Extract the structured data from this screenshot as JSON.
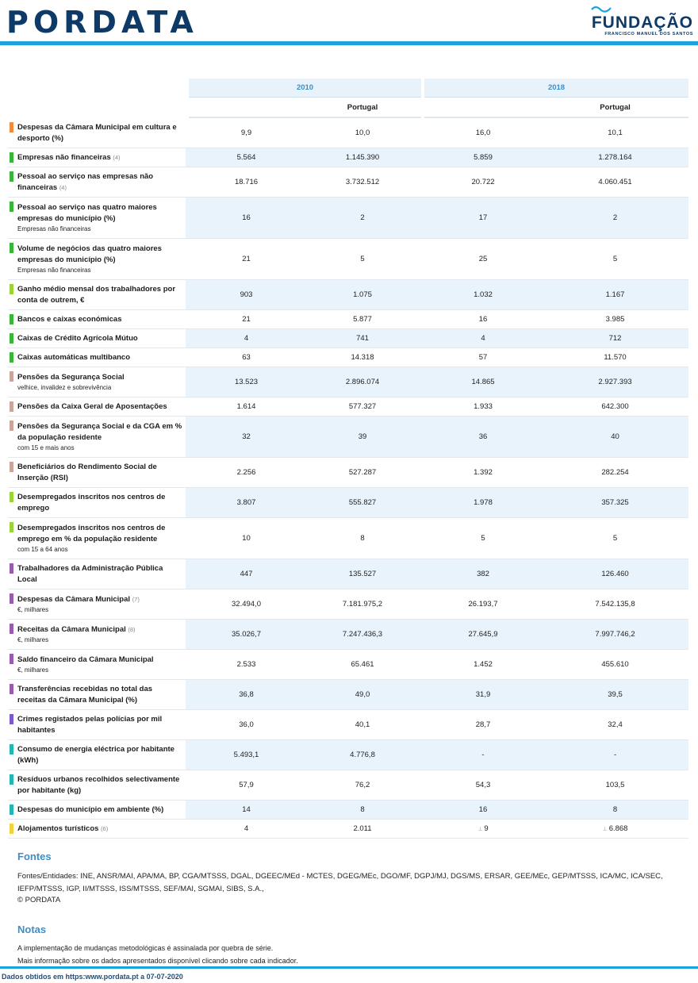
{
  "header": {
    "logo": "PORDATA",
    "foundation_name": "FUNDAÇÃO",
    "foundation_sub": "FRANCISCO MANUEL DOS SANTOS",
    "accent_color": "#1aa3dd"
  },
  "table": {
    "years": [
      "2010",
      "2018"
    ],
    "region": "Portugal",
    "rows": [
      {
        "label": "Despesas da Câmara Municipal em cultura e desporto (%)",
        "note": "",
        "sub": "",
        "color": "#f28c3c",
        "values": [
          "9,9",
          "10,0",
          "16,0",
          "10,1"
        ]
      },
      {
        "label": "Empresas não financeiras",
        "note": "(4)",
        "sub": "",
        "color": "#3ab53a",
        "values": [
          "5.564",
          "1.145.390",
          "5.859",
          "1.278.164"
        ]
      },
      {
        "label": "Pessoal ao serviço nas empresas não financeiras",
        "note": "(4)",
        "sub": "",
        "color": "#3ab53a",
        "values": [
          "18.716",
          "3.732.512",
          "20.722",
          "4.060.451"
        ]
      },
      {
        "label": "Pessoal ao serviço nas quatro maiores empresas do município (%)",
        "note": "",
        "sub": "Empresas não financeiras",
        "color": "#3ab53a",
        "values": [
          "16",
          "2",
          "17",
          "2"
        ]
      },
      {
        "label": "Volume de negócios das quatro maiores empresas do município (%)",
        "note": "",
        "sub": "Empresas não financeiras",
        "color": "#3ab53a",
        "values": [
          "21",
          "5",
          "25",
          "5"
        ]
      },
      {
        "label": "Ganho médio mensal dos trabalhadores por conta de outrem, €",
        "note": "",
        "sub": "",
        "color": "#9bd43a",
        "values": [
          "903",
          "1.075",
          "1.032",
          "1.167"
        ]
      },
      {
        "label": "Bancos e caixas económicas",
        "note": "",
        "sub": "",
        "color": "#3ab53a",
        "values": [
          "21",
          "5.877",
          "16",
          "3.985"
        ]
      },
      {
        "label": "Caixas de Crédito Agrícola Mútuo",
        "note": "",
        "sub": "",
        "color": "#3ab53a",
        "values": [
          "4",
          "741",
          "4",
          "712"
        ]
      },
      {
        "label": "Caixas automáticas multibanco",
        "note": "",
        "sub": "",
        "color": "#3ab53a",
        "values": [
          "63",
          "14.318",
          "57",
          "11.570"
        ]
      },
      {
        "label": "Pensões da Segurança Social",
        "note": "",
        "sub": "velhice, invalidez e sobrevivência",
        "color": "#c9a59a",
        "values": [
          "13.523",
          "2.896.074",
          "14.865",
          "2.927.393"
        ]
      },
      {
        "label": "Pensões da Caixa Geral de Aposentações",
        "note": "",
        "sub": "",
        "color": "#c9a59a",
        "values": [
          "1.614",
          "577.327",
          "1.933",
          "642.300"
        ]
      },
      {
        "label": "Pensões da Segurança Social e da CGA em % da população residente",
        "note": "",
        "sub": "com 15 e mais anos",
        "color": "#c9a59a",
        "values": [
          "32",
          "39",
          "36",
          "40"
        ]
      },
      {
        "label": "Beneficiários do Rendimento Social de Inserção (RSI)",
        "note": "",
        "sub": "",
        "color": "#c9a59a",
        "values": [
          "2.256",
          "527.287",
          "1.392",
          "282.254"
        ]
      },
      {
        "label": "Desempregados inscritos nos centros de emprego",
        "note": "",
        "sub": "",
        "color": "#9bd43a",
        "values": [
          "3.807",
          "555.827",
          "1.978",
          "357.325"
        ]
      },
      {
        "label": "Desempregados inscritos nos centros de emprego em % da população residente",
        "note": "",
        "sub": "com 15 a 64 anos",
        "color": "#9bd43a",
        "values": [
          "10",
          "8",
          "5",
          "5"
        ]
      },
      {
        "label": "Trabalhadores da Administração Pública Local",
        "note": "",
        "sub": "",
        "color": "#9a5ab0",
        "values": [
          "447",
          "135.527",
          "382",
          "126.460"
        ]
      },
      {
        "label": "Despesas da Câmara Municipal",
        "note": "(7)",
        "sub": "€, milhares",
        "color": "#9a5ab0",
        "values": [
          "32.494,0",
          "7.181.975,2",
          "26.193,7",
          "7.542.135,8"
        ]
      },
      {
        "label": "Receitas da Câmara Municipal",
        "note": "(8)",
        "sub": "€, milhares",
        "color": "#9a5ab0",
        "values": [
          "35.026,7",
          "7.247.436,3",
          "27.645,9",
          "7.997.746,2"
        ]
      },
      {
        "label": "Saldo financeiro da Câmara Municipal",
        "note": "",
        "sub": "€, milhares",
        "color": "#9a5ab0",
        "values": [
          "2.533",
          "65.461",
          "1.452",
          "455.610"
        ]
      },
      {
        "label": "Transferências recebidas no total das receitas da Câmara Municipal (%)",
        "note": "",
        "sub": "",
        "color": "#9a5ab0",
        "values": [
          "36,8",
          "49,0",
          "31,9",
          "39,5"
        ]
      },
      {
        "label": "Crimes registados pelas polícias por mil habitantes",
        "note": "",
        "sub": "",
        "color": "#7a5ac8",
        "values": [
          "36,0",
          "40,1",
          "28,7",
          "32,4"
        ]
      },
      {
        "label": "Consumo de energia eléctrica por habitante (kWh)",
        "note": "",
        "sub": "",
        "color": "#25b5b5",
        "values": [
          "5.493,1",
          "4.776,8",
          "-",
          "-"
        ]
      },
      {
        "label": "Resíduos urbanos recolhidos selectivamente por habitante (kg)",
        "note": "",
        "sub": "",
        "color": "#25b5b5",
        "values": [
          "57,9",
          "76,2",
          "54,3",
          "103,5"
        ]
      },
      {
        "label": "Despesas do município em ambiente (%)",
        "note": "",
        "sub": "",
        "color": "#25b5b5",
        "values": [
          "14",
          "8",
          "16",
          "8"
        ]
      },
      {
        "label": "Alojamentos turísticos",
        "note": "(6)",
        "sub": "",
        "color": "#f2d23c",
        "values": [
          "4",
          "2.011",
          "9",
          "6.868"
        ],
        "breaks": [
          false,
          false,
          true,
          true
        ]
      }
    ]
  },
  "fontes": {
    "title": "Fontes",
    "text": "Fontes/Entidades: INE, ANSR/MAI, APA/MA, BP, CGA/MTSSS, DGAL, DGEEC/MEd - MCTES, DGEG/MEc, DGO/MF, DGPJ/MJ, DGS/MS, ERSAR, GEE/MEc, GEP/MTSSS, ICA/MC, ICA/SEC, IEFP/MTSSS, IGP, II/MTSSS, ISS/MTSSS, SEF/MAI, SGMAI, SIBS, S.A.,",
    "copyright": "© PORDATA"
  },
  "notas": {
    "title": "Notas",
    "line1": "A implementação de mudanças metodológicas é assinalada por quebra de série.",
    "line2": "Mais informação sobre os dados apresentados disponível clicando sobre cada indicador."
  },
  "footer": {
    "text": "Dados obtidos em https:www.pordata.pt a 07-07-2020"
  },
  "break_symbol": "⊥"
}
